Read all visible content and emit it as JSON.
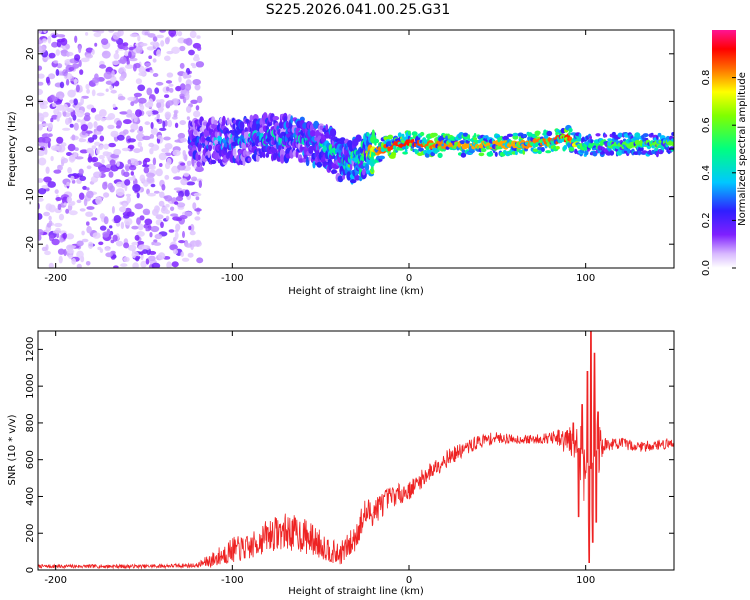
{
  "title": "S225.2026.041.00.25.G31",
  "colors": {
    "snr_line": "#ee2222",
    "axis": "#000000",
    "background": "#ffffff"
  },
  "chart_data": [
    {
      "type": "heatmap",
      "name": "spectrogram",
      "xlabel": "Height of straight line (km)",
      "ylabel": "Frequency (Hz)",
      "xlim": [
        -210,
        150
      ],
      "ylim": [
        -25,
        25
      ],
      "xticks": [
        -200,
        -100,
        0,
        100
      ],
      "yticks": [
        -20,
        -10,
        0,
        10,
        20
      ],
      "colorbar": {
        "label": "Normalized spectral amplitude",
        "range": [
          0.0,
          1.0
        ],
        "ticks": [
          0.0,
          0.2,
          0.4,
          0.6,
          0.8
        ]
      },
      "noise_region_km": [
        -210,
        -118
      ],
      "signal_ridge": {
        "x": [
          -118,
          -100,
          -80,
          -60,
          -45,
          -35,
          -30,
          -22,
          -15,
          -5,
          0,
          10,
          30,
          60,
          80,
          90,
          95,
          100,
          110,
          130,
          150
        ],
        "y": [
          1.5,
          1.5,
          2.5,
          2.0,
          0.0,
          -3.0,
          -2.0,
          -1.0,
          0.0,
          1.0,
          1.6,
          0.8,
          0.8,
          0.9,
          1.5,
          2.4,
          1.0,
          0.5,
          1.0,
          1.0,
          1.0
        ],
        "amplitude": [
          0.3,
          0.35,
          0.4,
          0.4,
          0.45,
          0.5,
          0.55,
          0.75,
          0.85,
          0.9,
          0.9,
          0.85,
          0.8,
          0.8,
          0.85,
          0.9,
          0.7,
          0.5,
          0.55,
          0.6,
          0.6
        ]
      }
    },
    {
      "type": "line",
      "name": "snr",
      "xlabel": "Height of straight line (km)",
      "ylabel": "SNR (10 * v/v)",
      "xlim": [
        -210,
        150
      ],
      "ylim": [
        0,
        1300
      ],
      "xticks": [
        -200,
        -100,
        0,
        100
      ],
      "yticks": [
        0,
        200,
        400,
        600,
        800,
        1000,
        1200
      ],
      "envelope": {
        "x": [
          -210,
          -150,
          -120,
          -110,
          -100,
          -90,
          -80,
          -70,
          -60,
          -50,
          -40,
          -32,
          -25,
          -20,
          -10,
          0,
          10,
          20,
          30,
          40,
          50,
          60,
          70,
          80,
          88,
          95,
          100,
          103,
          106,
          110,
          120,
          130,
          140,
          150
        ],
        "y": [
          20,
          20,
          25,
          60,
          110,
          120,
          190,
          210,
          190,
          140,
          80,
          150,
          300,
          320,
          400,
          430,
          520,
          600,
          650,
          700,
          720,
          710,
          710,
          720,
          700,
          680,
          600,
          550,
          650,
          680,
          690,
          670,
          680,
          690
        ],
        "noise_amplitude": [
          10,
          10,
          12,
          50,
          70,
          70,
          90,
          100,
          100,
          80,
          60,
          80,
          90,
          80,
          60,
          50,
          50,
          50,
          40,
          40,
          30,
          25,
          25,
          30,
          80,
          120,
          300,
          350,
          200,
          40,
          30,
          30,
          30,
          30
        ]
      },
      "spikes": [
        {
          "x": 93,
          "y": 800
        },
        {
          "x": 96,
          "y": 290
        },
        {
          "x": 98,
          "y": 900
        },
        {
          "x": 101,
          "y": 1080
        },
        {
          "x": 102,
          "y": 40
        },
        {
          "x": 103,
          "y": 1300
        },
        {
          "x": 104,
          "y": 150
        },
        {
          "x": 105,
          "y": 1180
        },
        {
          "x": 106,
          "y": 260
        },
        {
          "x": 107,
          "y": 860
        }
      ]
    }
  ]
}
